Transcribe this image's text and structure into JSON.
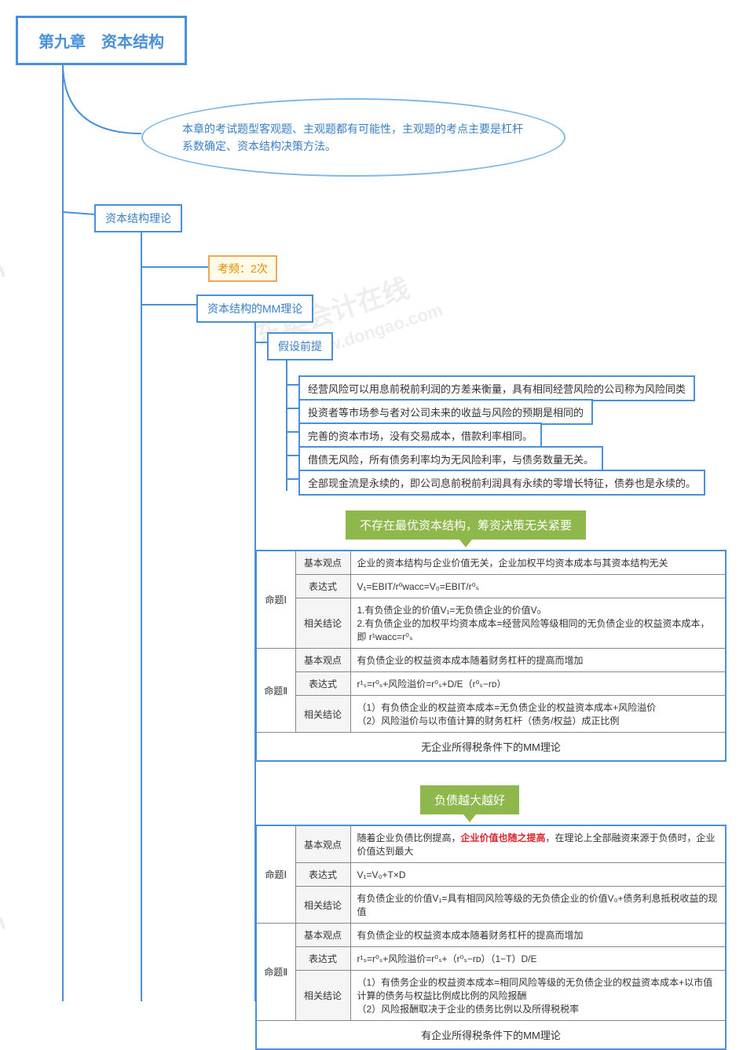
{
  "title": "第九章　资本结构",
  "ellipse_text": "本章的考试题型客观题、主观题都有可能性，主观题的考点主要是杠杆系数确定、资本结构决策方法。",
  "branch1": "资本结构理论",
  "freq": "考频：2次",
  "mm_theory": "资本结构的MM理论",
  "premise_label": "假设前提",
  "premises": [
    "经营风险可以用息前税前利润的方差来衡量，具有相同经营风险的公司称为风险同类",
    "投资者等市场参与者对公司未来的收益与风险的预期是相同的",
    "完善的资本市场，没有交易成本，借款利率相同。",
    "借债无风险，所有债务利率均为无风险利率，与债务数量无关。",
    "全部现金流是永续的，即公司息前税前利润具有永续的零增长特征，债券也是永续的。"
  ],
  "green1": "不存在最优资本结构，筹资决策无关紧要",
  "green2": "负债越大越好",
  "table1": {
    "caption": "无企业所得税条件下的MM理论",
    "rows": [
      [
        "命题Ⅰ",
        "基本观点",
        "企业的资本结构与企业价值无关，企业加权平均资本成本与其资本结构无关"
      ],
      [
        "",
        "表达式",
        "V₁=EBIT/r⁰wacc=V₀=EBIT/r⁰ₛ"
      ],
      [
        "",
        "相关结论",
        "1.有负债企业的价值V₁=无负债企业的价值V₀\n2.有负债企业的加权平均资本成本=经营风险等级相同的无负债企业的权益资本成本，即 r¹wacc=r⁰ₛ"
      ],
      [
        "命题Ⅱ",
        "基本观点",
        "有负债企业的权益资本成本随着财务杠杆的提高而增加"
      ],
      [
        "",
        "表达式",
        "r¹ₛ=r⁰ₛ+风险溢价=r⁰ₛ+D/E（r⁰ₛ−rᴅ）"
      ],
      [
        "",
        "相关结论",
        "（1）有负债企业的权益资本成本=无负债企业的权益资本成本+风险溢价\n（2）风险溢价与以市值计算的财务杠杆（债务/权益）成正比例"
      ]
    ]
  },
  "table2": {
    "caption": "有企业所得税条件下的MM理论",
    "red_fragment": "企业价值也随之提高",
    "rows": [
      [
        "命题Ⅰ",
        "基本观点",
        "随着企业负债比例提高，{RED}，在理论上全部融资来源于负债时，企业价值达到最大"
      ],
      [
        "",
        "表达式",
        "V₁=V₀+T×D"
      ],
      [
        "",
        "相关结论",
        "有负债企业的价值V₁=具有相同风险等级的无负债企业的价值V₀+债务利息抵税收益的现值"
      ],
      [
        "命题Ⅱ",
        "基本观点",
        "有负债企业的权益资本成本随着财务杠杆的提高而增加"
      ],
      [
        "",
        "表达式",
        "r¹ₛ=r⁰ₛ+风险溢价=r⁰ₛ+（r⁰ₛ−rᴅ）（1−T）D/E"
      ],
      [
        "",
        "相关结论",
        "（1）有债务企业的权益资本成本=相同风险等级的无负债企业的权益资本成本+以市值计算的债务与权益比例成比例的风险报酬\n（2）风险报酬取决于企业的债务比例以及所得税税率"
      ]
    ]
  },
  "watermarks": [
    "东奥会计在线",
    "www.dongao.com"
  ],
  "colors": {
    "blue_border": "#4a90d9",
    "blue_text": "#3a7fc4",
    "orange_border": "#f0a65a",
    "orange_bg": "#fffbe6",
    "green_bg": "#8fb84c",
    "red": "#d9272d",
    "line": "#4a90d9"
  }
}
